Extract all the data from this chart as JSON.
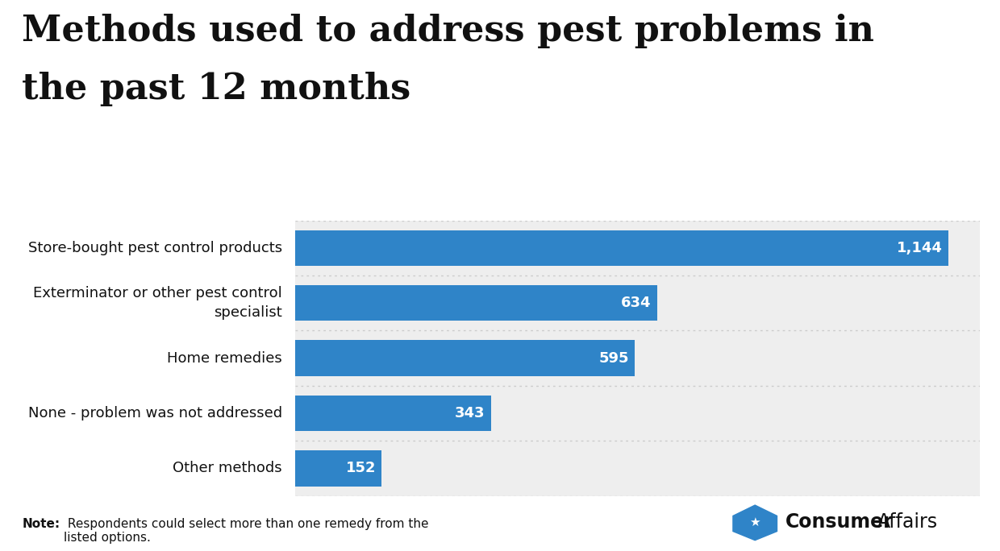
{
  "title_line1": "Methods used to address pest problems in",
  "title_line2": "the past 12 months",
  "categories": [
    "Store-bought pest control products",
    "Exterminator or other pest control\nspecialist",
    "Home remedies",
    "None - problem was not addressed",
    "Other methods"
  ],
  "values": [
    1144,
    634,
    595,
    343,
    152
  ],
  "labels": [
    "1,144",
    "634",
    "595",
    "343",
    "152"
  ],
  "bar_color": "#2f84c8",
  "bg_row_color": "#eeeeee",
  "separator_color": "#cccccc",
  "max_value": 1200,
  "note_bold": "Note:",
  "note_text": " Respondents could select more than one remedy from the\nlisted options.",
  "logo_color": "#2f84c8",
  "title_color": "#111111",
  "label_color": "#ffffff",
  "category_color": "#111111",
  "background_color": "#ffffff",
  "title_fontsize": 32,
  "category_fontsize": 13,
  "label_fontsize": 13,
  "note_fontsize": 11
}
